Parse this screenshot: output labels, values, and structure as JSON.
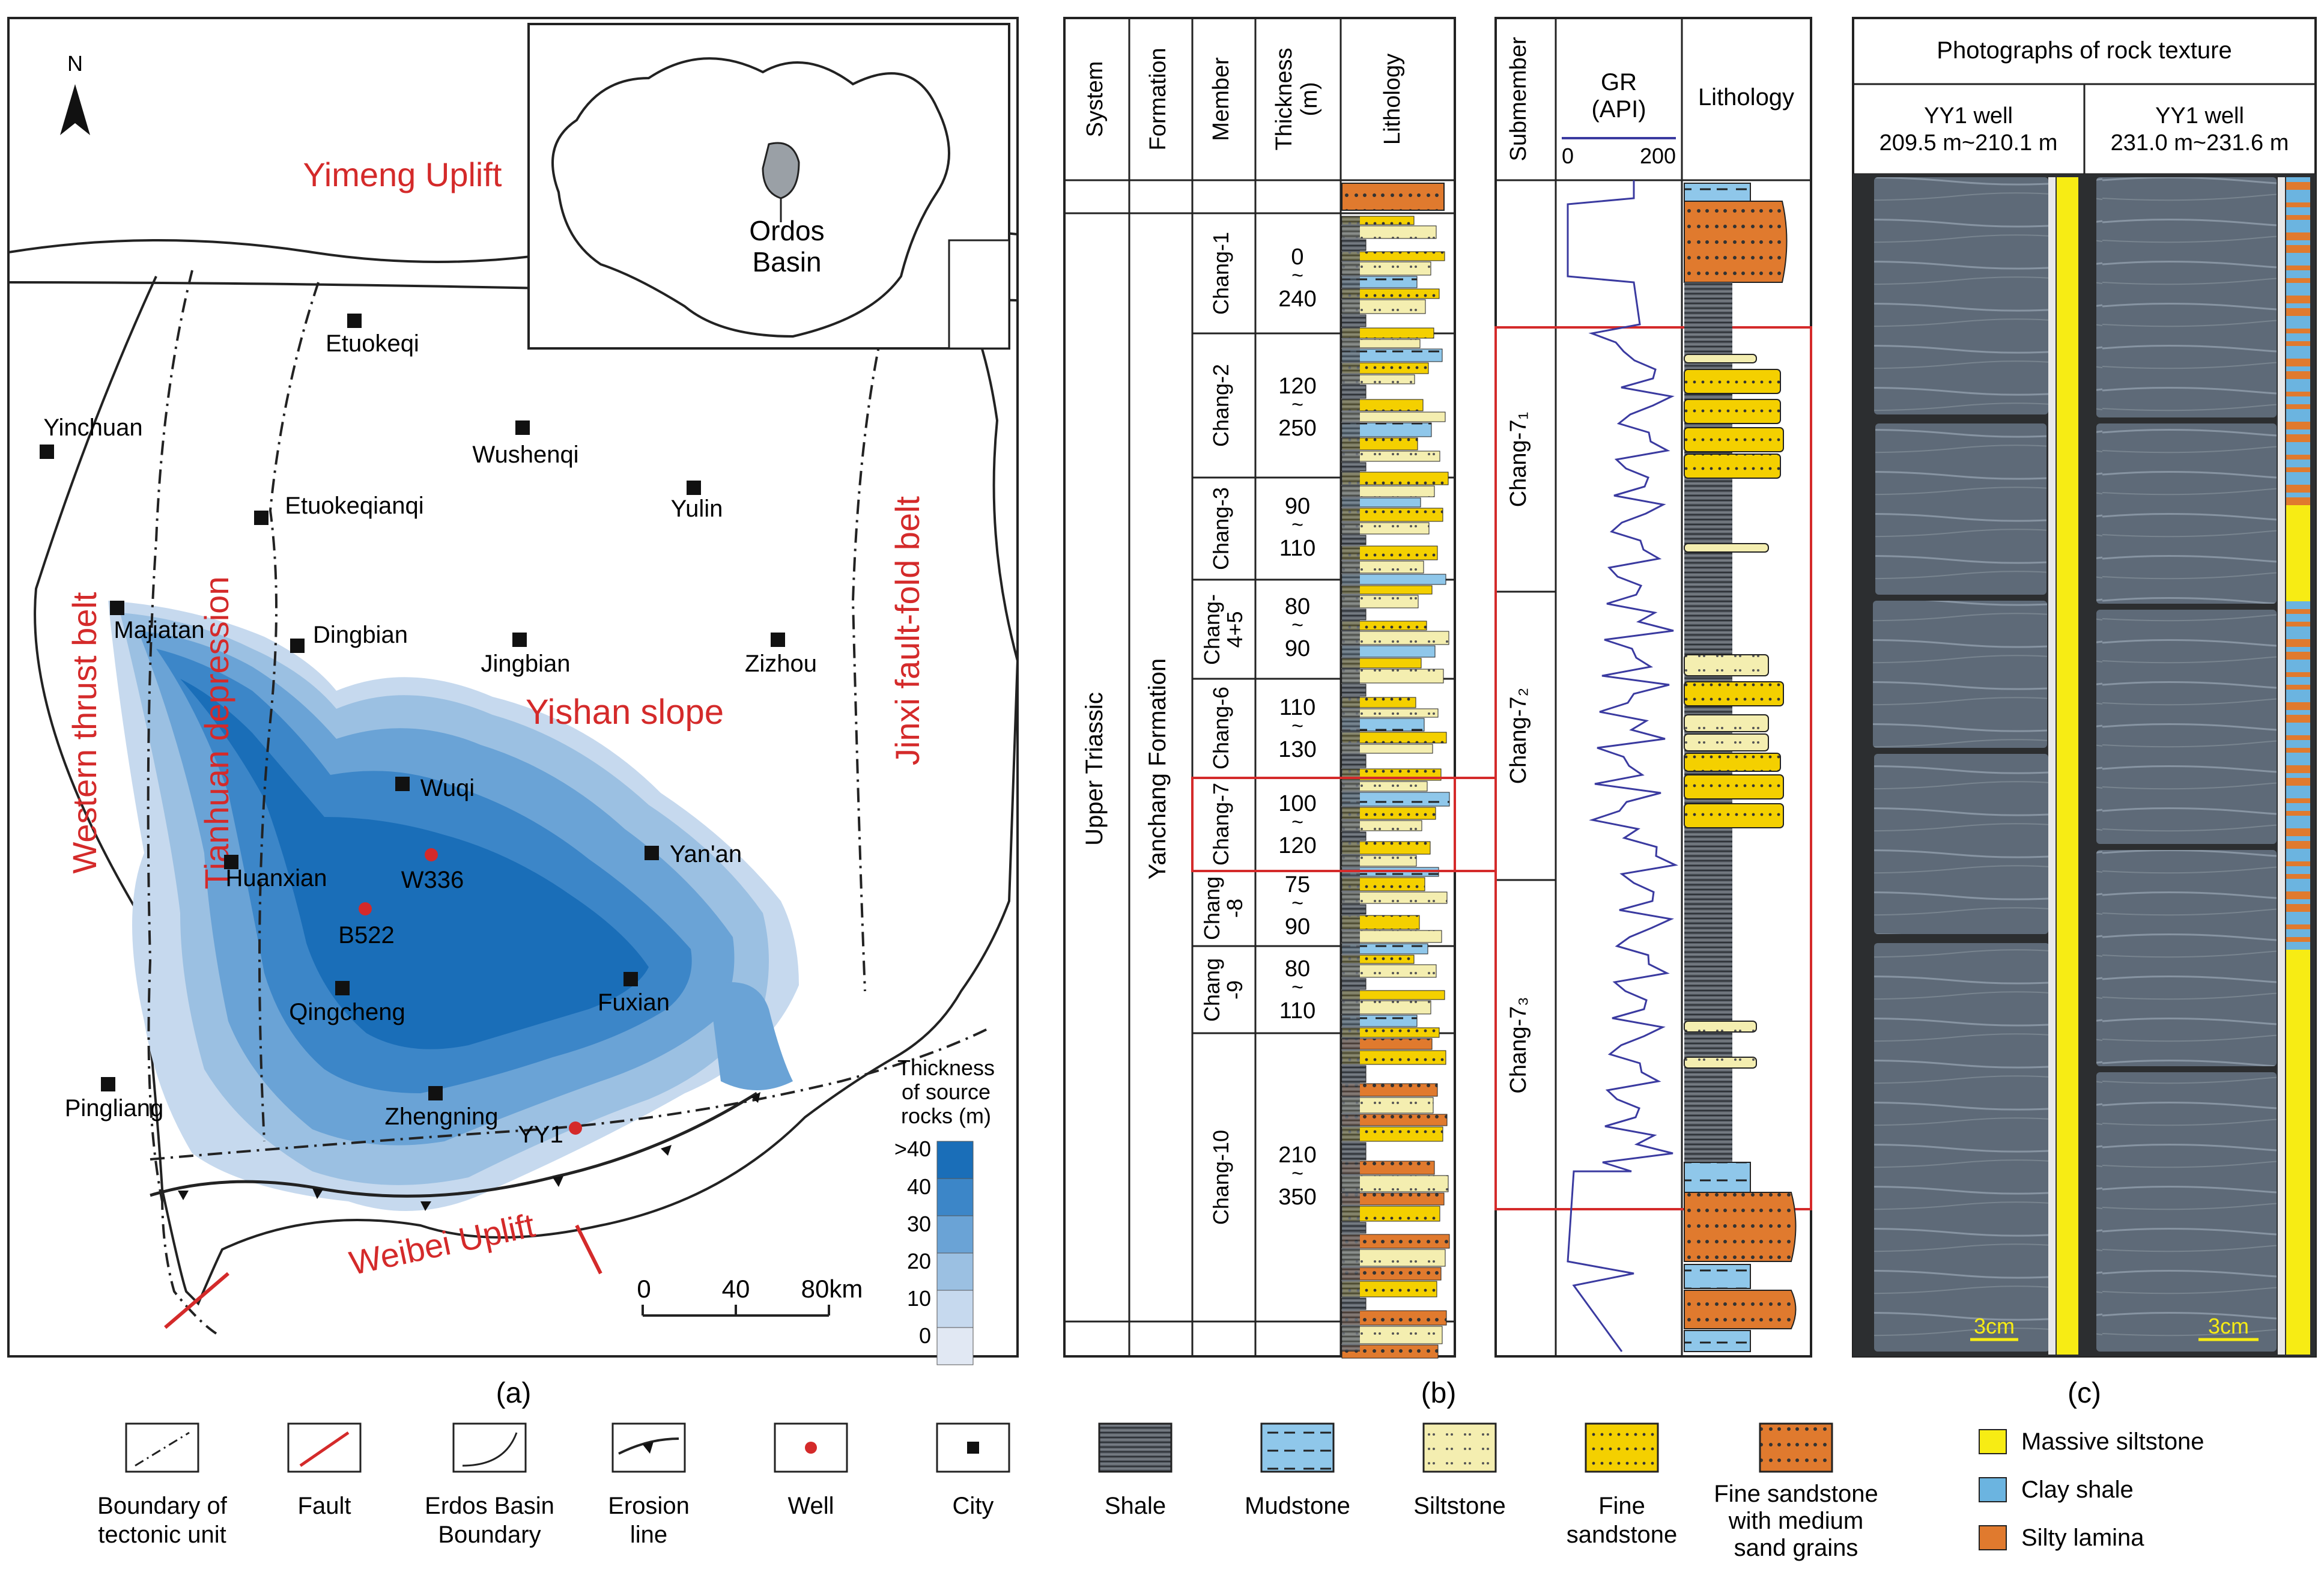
{
  "panel_a": {
    "caption": "(a)",
    "north": "N",
    "regions": {
      "yimeng": "Yimeng Uplift",
      "western": "Western thrust belt",
      "tianhuan": "Tianhuan depression",
      "yishan": "Yishan slope",
      "jinxi": "Jinxi fault-fold belt",
      "weibei": "Weibei Uplift"
    },
    "inset": {
      "label_line1": "Ordos",
      "label_line2": "Basin"
    },
    "cities": [
      "Etuokeqi",
      "Yinchuan",
      "Wushenqi",
      "Etuokeqianqi",
      "Yulin",
      "Majiatan",
      "Dingbian",
      "Jingbian",
      "Zizhou",
      "Wuqi",
      "Huanxian",
      "Yan'an",
      "Qingcheng",
      "Fuxian",
      "Pingliang",
      "Zhengning"
    ],
    "wells": [
      "W336",
      "B522",
      "YY1"
    ],
    "scale": {
      "ticks": [
        "0",
        "40",
        "80km"
      ]
    },
    "legend": {
      "title_line1": "Thickness",
      "title_line2": "of source",
      "title_line3": "rocks (m)",
      "levels": [
        ">40",
        "40",
        "30",
        "20",
        "10",
        "0"
      ],
      "colors": [
        "#1a6eb8",
        "#3c86c8",
        "#6aa3d6",
        "#9bc0e2",
        "#c6d9ee",
        "#e1e8f3"
      ]
    }
  },
  "panel_b": {
    "caption": "(b)",
    "headers": {
      "system": "System",
      "formation": "Formation",
      "member": "Member",
      "thickness_line1": "Thickness",
      "thickness_line2": "(m)",
      "lithology": "Lithology"
    },
    "system_label": "Upper Triassic",
    "formation_label": "Yanchang Formation",
    "members": [
      {
        "name": "Chang-1",
        "top": "0",
        "bottom": "240"
      },
      {
        "name": "Chang-2",
        "top": "120",
        "bottom": "250"
      },
      {
        "name": "Chang-3",
        "top": "90",
        "bottom": "110"
      },
      {
        "name_line1": "Chang-",
        "name_line2": "4+5",
        "top": "80",
        "bottom": "90"
      },
      {
        "name": "Chang-6",
        "top": "110",
        "bottom": "130"
      },
      {
        "name": "Chang-7",
        "top": "100",
        "bottom": "120"
      },
      {
        "name_line1": "Chang",
        "name_line2": "-8",
        "top": "75",
        "bottom": "90"
      },
      {
        "name_line1": "Chang",
        "name_line2": "-9",
        "top": "80",
        "bottom": "110"
      },
      {
        "name": "Chang-10",
        "top": "210",
        "bottom": "350"
      }
    ],
    "detail": {
      "headers": {
        "submember": "Submember",
        "gr": "GR",
        "gr_unit": "(API)",
        "gr_min": "0",
        "gr_max": "200",
        "lithology": "Lithology"
      },
      "submembers": [
        "Chang-7₁",
        "Chang-7₂",
        "Chang-7₃"
      ]
    }
  },
  "panel_c": {
    "caption": "(c)",
    "title": "Photographs of rock texture",
    "photos": [
      {
        "well": "YY1 well",
        "depth": "209.5 m~210.1 m",
        "scale": "3cm"
      },
      {
        "well": "YY1 well",
        "depth": "231.0 m~231.6 m",
        "scale": "3cm"
      }
    ],
    "legend": [
      {
        "label": "Massive siltstone",
        "color": "#f7ec14"
      },
      {
        "label": "Clay shale",
        "color": "#6bb4e0"
      },
      {
        "label": "Silty lamina",
        "color": "#e07a2e"
      }
    ]
  },
  "bottom_legend": [
    {
      "key": "boundary",
      "line1": "Boundary  of",
      "line2": "tectonic unit"
    },
    {
      "key": "fault",
      "line1": "Fault",
      "line2": ""
    },
    {
      "key": "erdos",
      "line1": "Erdos  Basin",
      "line2": "Boundary"
    },
    {
      "key": "erosion",
      "line1": "Erosion",
      "line2": "line"
    },
    {
      "key": "well",
      "line1": "Well",
      "line2": ""
    },
    {
      "key": "city",
      "line1": "City",
      "line2": ""
    },
    {
      "key": "shale",
      "line1": "Shale",
      "line2": ""
    },
    {
      "key": "mudstone",
      "line1": "Mudstone",
      "line2": ""
    },
    {
      "key": "siltstone",
      "line1": "Siltstone",
      "line2": ""
    },
    {
      "key": "fine",
      "line1": "Fine",
      "line2": "sandstone"
    },
    {
      "key": "finemed",
      "line1": "Fine sandstone",
      "line2": "with medium",
      "line3": "sand grains"
    }
  ]
}
